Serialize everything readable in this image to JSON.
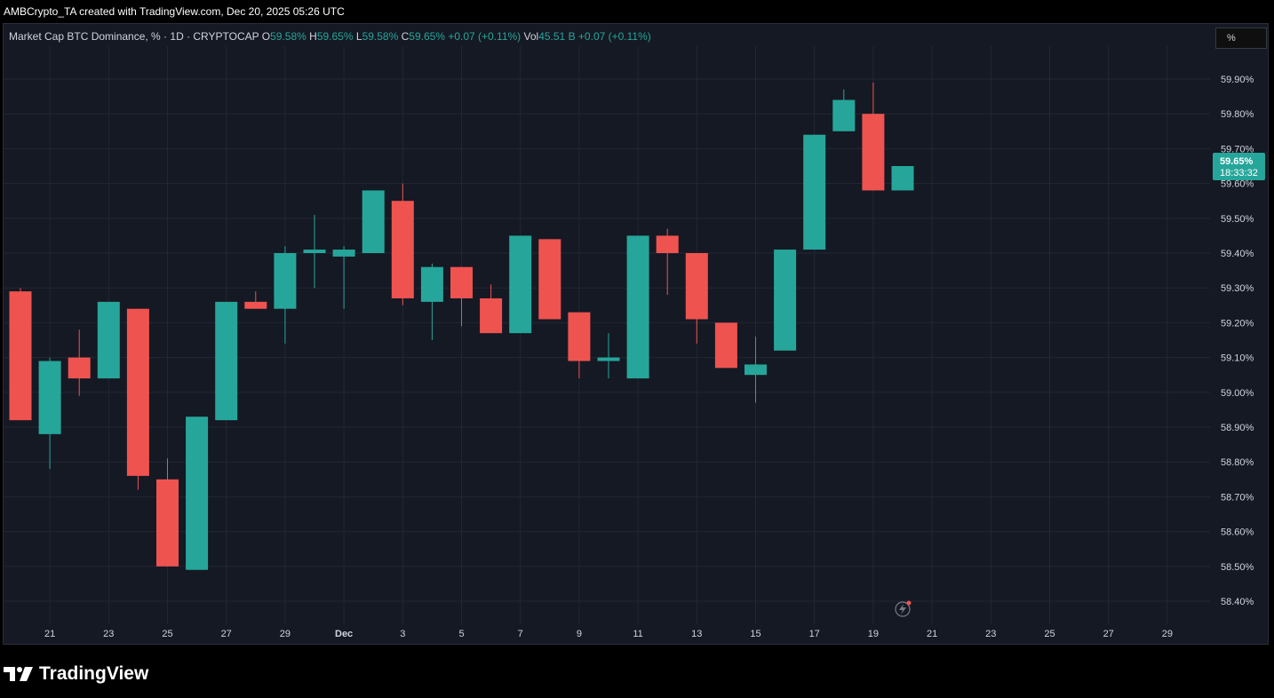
{
  "caption": "AMBCrypto_TA created with TradingView.com, Dec 20, 2025 05:26 UTC",
  "legend": {
    "symbol": "Market Cap BTC Dominance, % · 1D · CRYPTOCAP",
    "o_label": "O",
    "o_value": "59.58%",
    "h_label": "H",
    "h_value": "59.65%",
    "l_label": "L",
    "l_value": "59.58%",
    "c_label": "C",
    "c_value": "59.65%",
    "change": "+0.07 (+0.11%)",
    "vol_label": "Vol",
    "vol_value": "45.51 B",
    "vol_change": "+0.07 (+0.11%)"
  },
  "percent_button": "%",
  "brand": {
    "name": "TradingView"
  },
  "current_price": {
    "label": "59.65%",
    "countdown": "18:33:32"
  },
  "colors": {
    "up": "#26a69a",
    "down": "#ef5350",
    "background": "#151924",
    "grid": "#232733",
    "axis_text": "#d1d4dc"
  },
  "chart_data": {
    "type": "candlestick",
    "y_axis": {
      "range": [
        58.35,
        59.97
      ],
      "unit": "%",
      "ticks": [
        "58.40%",
        "58.50%",
        "58.60%",
        "58.70%",
        "58.80%",
        "58.90%",
        "59.00%",
        "59.10%",
        "59.20%",
        "59.30%",
        "59.40%",
        "59.50%",
        "59.60%",
        "59.70%",
        "59.80%",
        "59.90%"
      ]
    },
    "x_axis": {
      "ticks": [
        {
          "index": 1,
          "label": "21"
        },
        {
          "index": 3,
          "label": "23"
        },
        {
          "index": 5,
          "label": "25"
        },
        {
          "index": 7,
          "label": "27"
        },
        {
          "index": 9,
          "label": "29"
        },
        {
          "index": 11,
          "label": "Dec"
        },
        {
          "index": 13,
          "label": "3"
        },
        {
          "index": 15,
          "label": "5"
        },
        {
          "index": 17,
          "label": "7"
        },
        {
          "index": 19,
          "label": "9"
        },
        {
          "index": 21,
          "label": "11"
        },
        {
          "index": 23,
          "label": "13"
        },
        {
          "index": 25,
          "label": "15"
        },
        {
          "index": 27,
          "label": "17"
        },
        {
          "index": 29,
          "label": "19"
        },
        {
          "index": 31,
          "label": "21"
        },
        {
          "index": 33,
          "label": "23"
        },
        {
          "index": 35,
          "label": "25"
        },
        {
          "index": 37,
          "label": "27"
        },
        {
          "index": 39,
          "label": "29"
        }
      ]
    },
    "candles": [
      {
        "date": "Nov 20",
        "o": 59.29,
        "h": 59.3,
        "l": 58.92,
        "c": 58.92
      },
      {
        "date": "Nov 21",
        "o": 58.88,
        "h": 59.1,
        "l": 58.78,
        "c": 59.09
      },
      {
        "date": "Nov 22",
        "o": 59.1,
        "h": 59.18,
        "l": 58.99,
        "c": 59.04
      },
      {
        "date": "Nov 23",
        "o": 59.04,
        "h": 59.26,
        "l": 59.04,
        "c": 59.26
      },
      {
        "date": "Nov 24",
        "o": 59.24,
        "h": 59.24,
        "l": 58.72,
        "c": 58.76
      },
      {
        "date": "Nov 25",
        "o": 58.75,
        "h": 58.81,
        "l": 58.5,
        "c": 58.5
      },
      {
        "date": "Nov 26",
        "o": 58.49,
        "h": 58.93,
        "l": 58.49,
        "c": 58.93
      },
      {
        "date": "Nov 27",
        "o": 58.92,
        "h": 59.26,
        "l": 58.92,
        "c": 59.26
      },
      {
        "date": "Nov 28",
        "o": 59.26,
        "h": 59.29,
        "l": 59.24,
        "c": 59.24
      },
      {
        "date": "Nov 29",
        "o": 59.24,
        "h": 59.42,
        "l": 59.14,
        "c": 59.4
      },
      {
        "date": "Nov 30",
        "o": 59.4,
        "h": 59.51,
        "l": 59.3,
        "c": 59.41
      },
      {
        "date": "Dec 1",
        "o": 59.39,
        "h": 59.42,
        "l": 59.24,
        "c": 59.41
      },
      {
        "date": "Dec 2",
        "o": 59.4,
        "h": 59.58,
        "l": 59.4,
        "c": 59.58
      },
      {
        "date": "Dec 3",
        "o": 59.55,
        "h": 59.6,
        "l": 59.25,
        "c": 59.27
      },
      {
        "date": "Dec 4",
        "o": 59.26,
        "h": 59.37,
        "l": 59.15,
        "c": 59.36
      },
      {
        "date": "Dec 5",
        "o": 59.36,
        "h": 59.36,
        "l": 59.19,
        "c": 59.27
      },
      {
        "date": "Dec 6",
        "o": 59.27,
        "h": 59.31,
        "l": 59.17,
        "c": 59.17
      },
      {
        "date": "Dec 7",
        "o": 59.17,
        "h": 59.45,
        "l": 59.17,
        "c": 59.45
      },
      {
        "date": "Dec 8",
        "o": 59.44,
        "h": 59.44,
        "l": 59.21,
        "c": 59.21
      },
      {
        "date": "Dec 9",
        "o": 59.23,
        "h": 59.23,
        "l": 59.04,
        "c": 59.09
      },
      {
        "date": "Dec 10",
        "o": 59.09,
        "h": 59.17,
        "l": 59.04,
        "c": 59.1
      },
      {
        "date": "Dec 11",
        "o": 59.04,
        "h": 59.45,
        "l": 59.04,
        "c": 59.45
      },
      {
        "date": "Dec 12",
        "o": 59.45,
        "h": 59.47,
        "l": 59.28,
        "c": 59.4
      },
      {
        "date": "Dec 13",
        "o": 59.4,
        "h": 59.4,
        "l": 59.14,
        "c": 59.21
      },
      {
        "date": "Dec 14",
        "o": 59.2,
        "h": 59.2,
        "l": 59.07,
        "c": 59.07
      },
      {
        "date": "Dec 15",
        "o": 59.05,
        "h": 59.16,
        "l": 58.97,
        "c": 59.08
      },
      {
        "date": "Dec 16",
        "o": 59.12,
        "h": 59.41,
        "l": 59.12,
        "c": 59.41
      },
      {
        "date": "Dec 17",
        "o": 59.41,
        "h": 59.74,
        "l": 59.41,
        "c": 59.74
      },
      {
        "date": "Dec 18",
        "o": 59.75,
        "h": 59.87,
        "l": 59.75,
        "c": 59.84
      },
      {
        "date": "Dec 19",
        "o": 59.8,
        "h": 59.89,
        "l": 59.58,
        "c": 59.58
      },
      {
        "date": "Dec 20",
        "o": 59.58,
        "h": 59.65,
        "l": 59.58,
        "c": 59.65
      }
    ]
  }
}
